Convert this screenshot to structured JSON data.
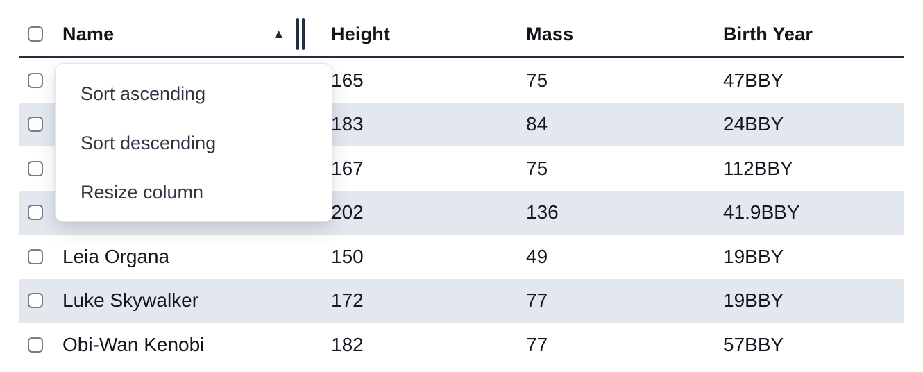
{
  "colors": {
    "accent_dark": "#222d3d",
    "row_stripe": "#e3e7ee",
    "cell_text": "#13161c",
    "menu_text": "#2c3542"
  },
  "icons": {
    "sort_ascending": "▲"
  },
  "table": {
    "columns": [
      {
        "label": "Name"
      },
      {
        "label": "Height"
      },
      {
        "label": "Mass"
      },
      {
        "label": "Birth Year"
      }
    ],
    "rows": [
      {
        "name": "",
        "height": "165",
        "mass": "75",
        "birth_year": "47BBY"
      },
      {
        "name": "",
        "height": "183",
        "mass": "84",
        "birth_year": "24BBY"
      },
      {
        "name": "",
        "height": "167",
        "mass": "75",
        "birth_year": "112BBY"
      },
      {
        "name": "",
        "height": "202",
        "mass": "136",
        "birth_year": "41.9BBY"
      },
      {
        "name": "Leia Organa",
        "height": "150",
        "mass": "49",
        "birth_year": "19BBY"
      },
      {
        "name": "Luke Skywalker",
        "height": "172",
        "mass": "77",
        "birth_year": "19BBY"
      },
      {
        "name": "Obi-Wan Kenobi",
        "height": "182",
        "mass": "77",
        "birth_year": "57BBY"
      }
    ]
  },
  "menu": {
    "items": [
      {
        "label": "Sort ascending"
      },
      {
        "label": "Sort descending"
      },
      {
        "label": "Resize column"
      }
    ]
  }
}
